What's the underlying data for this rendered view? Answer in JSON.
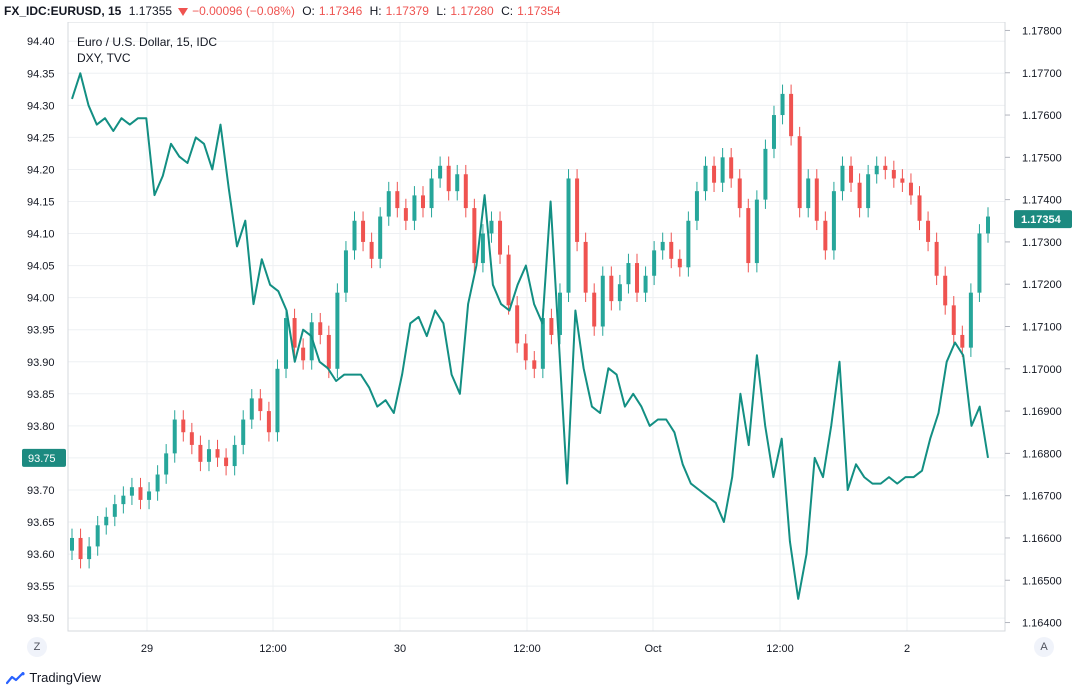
{
  "header": {
    "symbol": "FX_IDC:EURUSD, 15",
    "last": "1.17355",
    "change": "−0.00096 (−0.08%)",
    "o_label": "O:",
    "o_val": "1.17346",
    "h_label": "H:",
    "h_val": "1.17379",
    "l_label": "L:",
    "l_val": "1.17280",
    "c_label": "C:",
    "c_val": "1.17354"
  },
  "legend": {
    "main": "Euro / U.S. Dollar, 15, IDC",
    "compare": "DXY, TVC"
  },
  "buttons": {
    "timezone": "Z",
    "autoscale": "A"
  },
  "footer": {
    "brand": "TradingView"
  },
  "colors": {
    "up": "#26a69a",
    "down": "#ef5350",
    "dxy": "#138f83",
    "badge": "#1c8a80"
  },
  "chart_data": {
    "type": "line",
    "subtype": "candlestick with overlay line",
    "left_axis": {
      "ticks": [
        "94.40",
        "94.35",
        "94.30",
        "94.25",
        "94.20",
        "94.15",
        "94.10",
        "94.05",
        "94.00",
        "93.95",
        "93.90",
        "93.85",
        "93.80",
        "93.75",
        "93.70",
        "93.65",
        "93.60",
        "93.55",
        "93.50"
      ],
      "ylim": [
        93.48,
        94.43
      ]
    },
    "right_axis": {
      "ticks": [
        "1.17800",
        "1.17700",
        "1.17600",
        "1.17500",
        "1.17400",
        "1.17300",
        "1.17200",
        "1.17100",
        "1.17000",
        "1.16900",
        "1.16800",
        "1.16700",
        "1.16600",
        "1.16500",
        "1.16400"
      ],
      "ylim": [
        1.1638,
        1.1782
      ]
    },
    "x_ticks": [
      "29",
      "12:00",
      "30",
      "12:00",
      "Oct",
      "12:00",
      "2"
    ],
    "last_badges": {
      "left": "93.75",
      "right": "1.17354"
    },
    "series": [
      {
        "name": "Euro / U.S. Dollar",
        "axis": "right",
        "style": "candles",
        "values": [
          1.166,
          1.1655,
          1.1658,
          1.1663,
          1.1665,
          1.1668,
          1.167,
          1.1672,
          1.1669,
          1.1671,
          1.1675,
          1.168,
          1.1688,
          1.1685,
          1.1682,
          1.1678,
          1.1681,
          1.1679,
          1.1677,
          1.1682,
          1.1688,
          1.1693,
          1.169,
          1.1685,
          1.17,
          1.1712,
          1.1705,
          1.1702,
          1.1711,
          1.1708,
          1.17,
          1.1718,
          1.1728,
          1.1735,
          1.173,
          1.1726,
          1.1736,
          1.1742,
          1.1738,
          1.1735,
          1.1741,
          1.1738,
          1.1745,
          1.1748,
          1.1742,
          1.1746,
          1.1738,
          1.1725,
          1.1732,
          1.1735,
          1.1727,
          1.1715,
          1.1706,
          1.1702,
          1.17,
          1.1712,
          1.1708,
          1.1718,
          1.1745,
          1.173,
          1.1718,
          1.171,
          1.1722,
          1.1716,
          1.172,
          1.1725,
          1.1718,
          1.1722,
          1.1728,
          1.173,
          1.1726,
          1.1724,
          1.1735,
          1.1742,
          1.1748,
          1.1744,
          1.175,
          1.1745,
          1.1738,
          1.1725,
          1.174,
          1.1752,
          1.176,
          1.1765,
          1.1755,
          1.1738,
          1.1745,
          1.1735,
          1.1728,
          1.1742,
          1.1748,
          1.1744,
          1.1738,
          1.1746,
          1.1748,
          1.1747,
          1.1745,
          1.1744,
          1.1741,
          1.1735,
          1.173,
          1.1722,
          1.1715,
          1.1708,
          1.1705,
          1.1718,
          1.1732,
          1.1736
        ]
      },
      {
        "name": "DXY",
        "axis": "left",
        "style": "line",
        "values": [
          94.31,
          94.35,
          94.3,
          94.27,
          94.28,
          94.26,
          94.28,
          94.27,
          94.28,
          94.28,
          94.16,
          94.19,
          94.24,
          94.22,
          94.21,
          94.25,
          94.24,
          94.2,
          94.27,
          94.17,
          94.08,
          94.12,
          93.99,
          94.06,
          94.02,
          94.01,
          93.98,
          93.9,
          93.95,
          93.94,
          93.9,
          93.89,
          93.87,
          93.88,
          93.88,
          93.88,
          93.86,
          93.83,
          93.84,
          93.82,
          93.88,
          93.96,
          93.97,
          93.94,
          93.98,
          93.96,
          93.88,
          93.85,
          93.99,
          94.05,
          94.16,
          94.02,
          93.99,
          93.98,
          94.02,
          94.05,
          93.99,
          93.96,
          94.15,
          93.93,
          93.71,
          93.98,
          93.89,
          93.83,
          93.82,
          93.89,
          93.88,
          93.83,
          93.85,
          93.83,
          93.8,
          93.81,
          93.81,
          93.79,
          93.74,
          93.71,
          93.7,
          93.69,
          93.68,
          93.65,
          93.72,
          93.85,
          93.77,
          93.91,
          93.8,
          93.72,
          93.78,
          93.62,
          93.53,
          93.6,
          93.75,
          93.72,
          93.8,
          93.9,
          93.7,
          93.74,
          93.72,
          93.71,
          93.71,
          93.72,
          93.71,
          93.72,
          93.72,
          93.73,
          93.78,
          93.82,
          93.9,
          93.93,
          93.91,
          93.8,
          93.83,
          93.75
        ]
      }
    ]
  }
}
